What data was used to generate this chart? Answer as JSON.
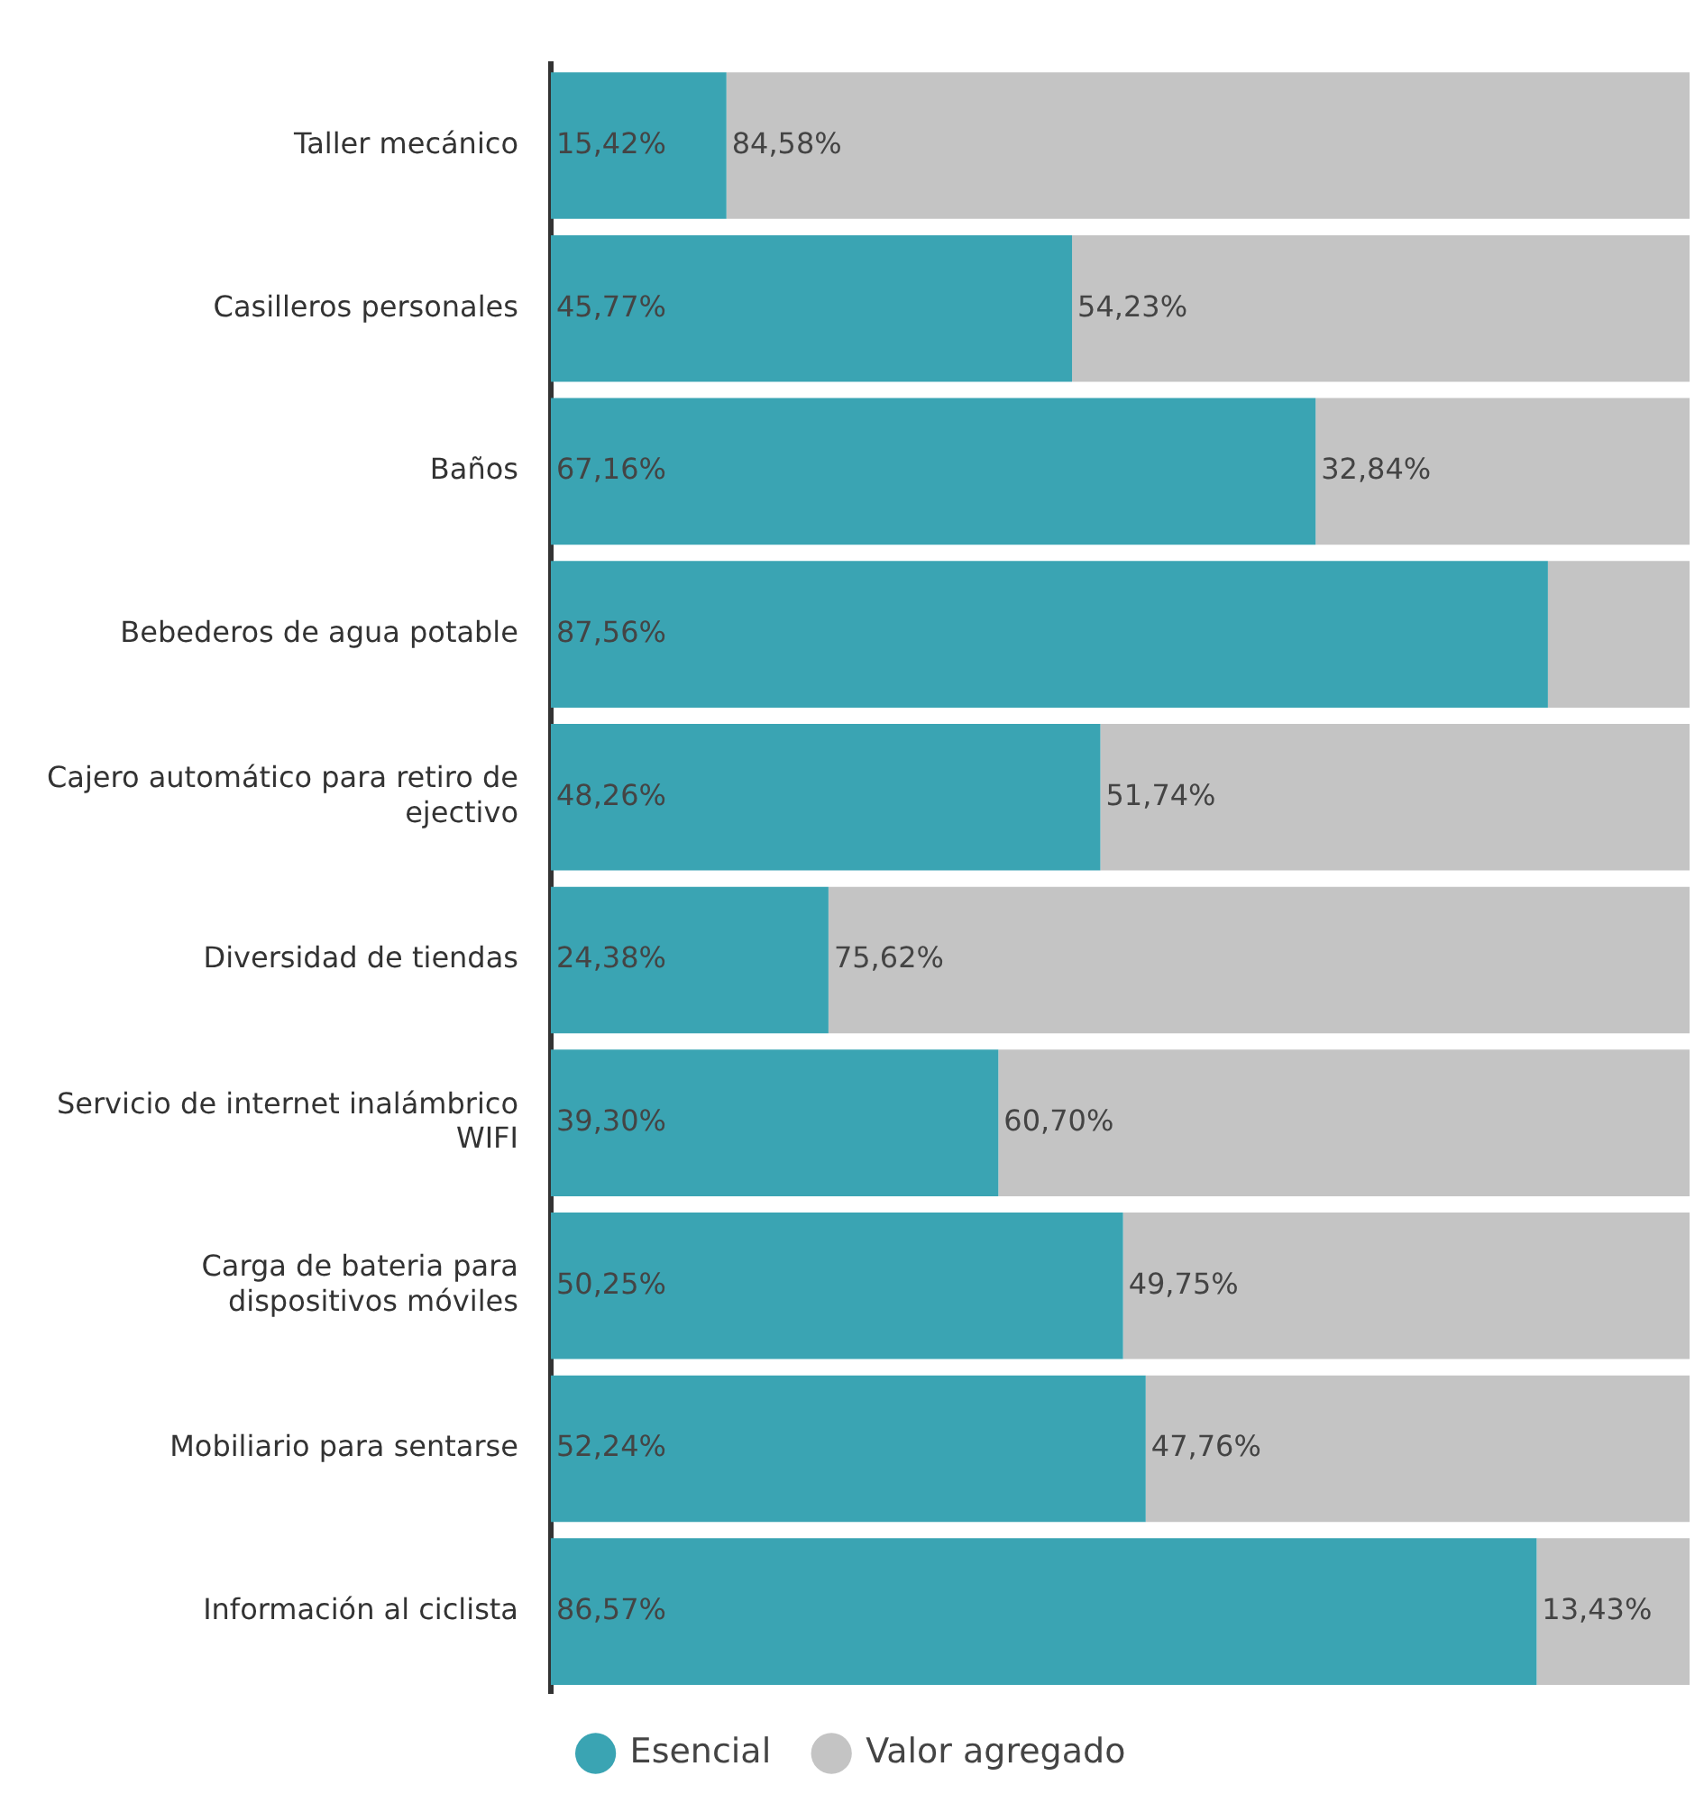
{
  "chart_data": {
    "type": "bar",
    "orientation": "horizontal",
    "stacked": true,
    "categories": [
      "Taller mecánico",
      "Casilleros personales",
      "Baños",
      "Bebederos de agua potable",
      "Cajero automático para retiro de ejectivo",
      "Diversidad de tiendas",
      "Servicio de internet inalámbrico WIFI",
      "Carga de bateria para dispositivos móviles",
      "Mobiliario para sentarse",
      "Información al ciclista"
    ],
    "series": [
      {
        "name": "Esencial",
        "color": "#3aa4b3",
        "values": [
          15.42,
          45.77,
          67.16,
          87.56,
          48.26,
          24.38,
          39.3,
          50.25,
          52.24,
          86.57
        ],
        "value_labels": [
          "15,42%",
          "45,77%",
          "67,16%",
          "87,56%",
          "48,26%",
          "24,38%",
          "39,30%",
          "50,25%",
          "52,24%",
          "86,57%"
        ]
      },
      {
        "name": "Valor agregado",
        "color": "#c4c4c4",
        "values": [
          84.58,
          54.23,
          32.84,
          12.44,
          51.74,
          75.62,
          60.7,
          49.75,
          47.76,
          13.43
        ],
        "value_labels": [
          "84,58%",
          "54,23%",
          "32,84%",
          null,
          "51,74%",
          "75,62%",
          "60,70%",
          "49,75%",
          "47,76%",
          "13,43%"
        ]
      }
    ],
    "xlim": [
      0,
      100
    ],
    "tick_labels": "y",
    "grid": false,
    "legend": "bottom"
  }
}
